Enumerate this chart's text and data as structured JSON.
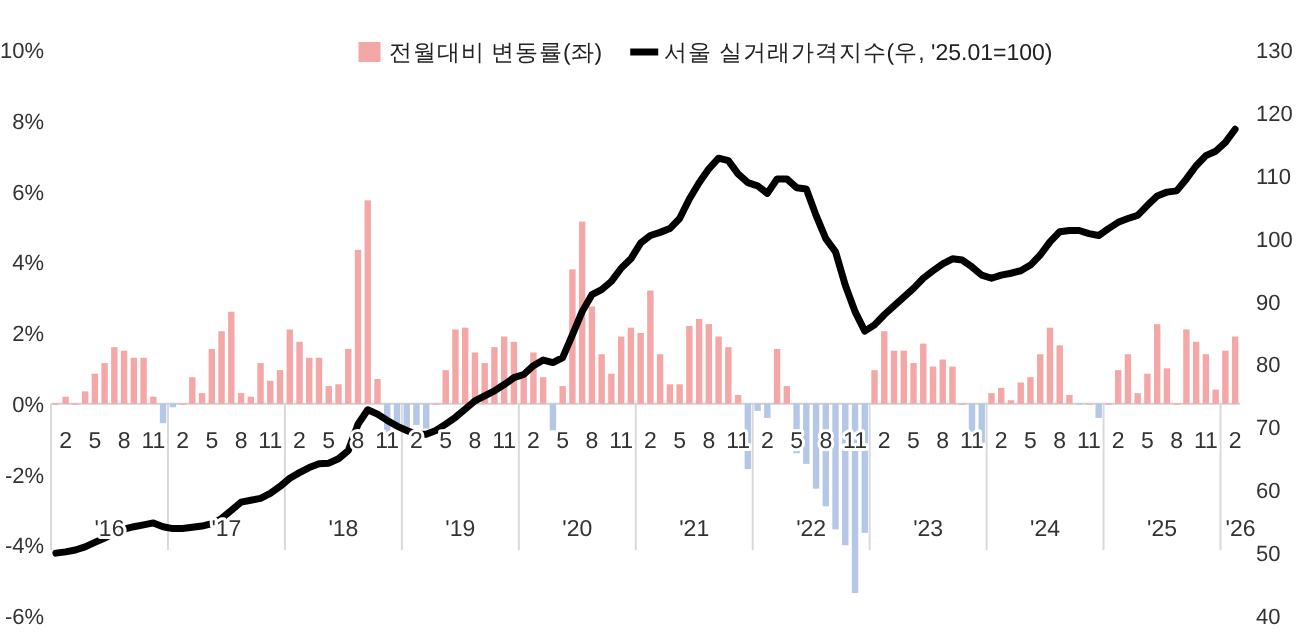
{
  "chart_data": {
    "type": "bar",
    "categories": [
      null,
      "2",
      null,
      null,
      "5",
      null,
      null,
      "8",
      null,
      null,
      "11",
      null,
      null,
      "2",
      null,
      null,
      "5",
      null,
      null,
      "8",
      null,
      null,
      "11",
      null,
      null,
      "2",
      null,
      null,
      "5",
      null,
      null,
      "8",
      null,
      null,
      "11",
      null,
      null,
      "2",
      null,
      null,
      "5",
      null,
      null,
      "8",
      null,
      null,
      "11",
      null,
      null,
      "2",
      null,
      null,
      "5",
      null,
      null,
      "8",
      null,
      null,
      "11",
      null,
      null,
      "2",
      null,
      null,
      "5",
      null,
      null,
      "8",
      null,
      null,
      "11",
      null,
      null,
      "2",
      null,
      null,
      "5",
      null,
      null,
      "8",
      null,
      null,
      "11",
      null,
      null,
      "2",
      null,
      null,
      "5",
      null,
      null,
      "8",
      null,
      null,
      "11",
      null,
      null,
      "2",
      null,
      null,
      "5",
      null,
      null,
      "8",
      null,
      null,
      "11",
      null,
      null,
      "2",
      null,
      null,
      "5",
      null,
      null,
      "8",
      null,
      null,
      "11",
      null,
      null,
      "2"
    ],
    "series": [
      {
        "name": "전월대비 변동률(좌)",
        "color": "#f4a7a7",
        "values": [
          0,
          0.2,
          0,
          0.35,
          0.85,
          1.15,
          1.6,
          1.5,
          1.3,
          1.3,
          0.2,
          -0.55,
          -0.1,
          0,
          0.75,
          0.3,
          1.55,
          2.05,
          2.6,
          0.3,
          0.2,
          1.15,
          0.65,
          0.95,
          2.1,
          1.75,
          1.3,
          1.3,
          0.5,
          0.55,
          1.55,
          4.35,
          5.75,
          0.7,
          -0.9,
          -0.7,
          -0.8,
          -0.6,
          -0.7,
          0,
          0.95,
          2.1,
          2.15,
          1.45,
          1.15,
          1.6,
          1.9,
          1.75,
          0.85,
          1.45,
          0.75,
          -0.75,
          0.5,
          3.8,
          5.15,
          2.75,
          1.4,
          0.85,
          1.9,
          2.15,
          2.0,
          3.2,
          1.4,
          0.55,
          0.55,
          2.2,
          2.4,
          2.25,
          1.9,
          1.6,
          0.25,
          -1.85,
          -0.2,
          -0.4,
          1.55,
          0.5,
          -1.4,
          -1.7,
          -2.4,
          -2.9,
          -3.55,
          -4.0,
          -5.35,
          -3.65,
          0.95,
          2.05,
          1.5,
          1.5,
          1.15,
          1.7,
          1.05,
          1.25,
          1.05,
          0,
          -0.9,
          -1.1,
          0.3,
          0.45,
          0.1,
          0.6,
          0.75,
          1.4,
          2.15,
          1.65,
          0.25,
          0,
          0,
          -0.4,
          0,
          0.95,
          1.4,
          0.3,
          0.85,
          2.25,
          1.0,
          0,
          2.1,
          1.75,
          1.4,
          0.4,
          1.5,
          1.9
        ],
        "colors": [
          "#f4a7a7",
          "#f4a7a7",
          "#f4a7a7",
          "#f4a7a7",
          "#f4a7a7",
          "#f4a7a7",
          "#f4a7a7",
          "#f4a7a7",
          "#f4a7a7",
          "#f4a7a7",
          "#f4a7a7",
          "#b4c7e7",
          "#b4c7e7",
          "#f4a7a7",
          "#f4a7a7",
          "#f4a7a7",
          "#f4a7a7",
          "#f4a7a7",
          "#f4a7a7",
          "#f4a7a7",
          "#f4a7a7",
          "#f4a7a7",
          "#f4a7a7",
          "#f4a7a7",
          "#f4a7a7",
          "#f4a7a7",
          "#f4a7a7",
          "#f4a7a7",
          "#f4a7a7",
          "#f4a7a7",
          "#f4a7a7",
          "#f4a7a7",
          "#f4a7a7",
          "#f4a7a7",
          "#b4c7e7",
          "#b4c7e7",
          "#b4c7e7",
          "#b4c7e7",
          "#b4c7e7",
          "#f4a7a7",
          "#f4a7a7",
          "#f4a7a7",
          "#f4a7a7",
          "#f4a7a7",
          "#f4a7a7",
          "#f4a7a7",
          "#f4a7a7",
          "#f4a7a7",
          "#f4a7a7",
          "#f4a7a7",
          "#f4a7a7",
          "#b4c7e7",
          "#f4a7a7",
          "#f4a7a7",
          "#f4a7a7",
          "#f4a7a7",
          "#f4a7a7",
          "#f4a7a7",
          "#f4a7a7",
          "#f4a7a7",
          "#f4a7a7",
          "#f4a7a7",
          "#f4a7a7",
          "#f4a7a7",
          "#f4a7a7",
          "#f4a7a7",
          "#f4a7a7",
          "#f4a7a7",
          "#f4a7a7",
          "#f4a7a7",
          "#f4a7a7",
          "#b4c7e7",
          "#b4c7e7",
          "#b4c7e7",
          "#f4a7a7",
          "#f4a7a7",
          "#b4c7e7",
          "#b4c7e7",
          "#b4c7e7",
          "#b4c7e7",
          "#b4c7e7",
          "#b4c7e7",
          "#b4c7e7",
          "#b4c7e7",
          "#f4a7a7",
          "#f4a7a7",
          "#f4a7a7",
          "#f4a7a7",
          "#f4a7a7",
          "#f4a7a7",
          "#f4a7a7",
          "#f4a7a7",
          "#f4a7a7",
          "#f4a7a7",
          "#b4c7e7",
          "#b4c7e7",
          "#f4a7a7",
          "#f4a7a7",
          "#f4a7a7",
          "#f4a7a7",
          "#f4a7a7",
          "#f4a7a7",
          "#f4a7a7",
          "#f4a7a7",
          "#f4a7a7",
          "#b4c7e7",
          "#f4a7a7",
          "#b4c7e7",
          "#f4a7a7",
          "#f4a7a7",
          "#f4a7a7",
          "#f4a7a7",
          "#f4a7a7",
          "#f4a7a7",
          "#f4a7a7",
          "#f4a7a7",
          "#f4a7a7",
          "#f4a7a7",
          "#f4a7a7",
          "#f4a7a7",
          "#f4a7a7",
          "#f4a7a7"
        ]
      },
      {
        "name": "서울 실거래가격지수(우, '25.01=100)",
        "type": "line",
        "axis": "y2",
        "color": "#000000",
        "values": [
          50.0,
          50.2,
          50.5,
          51.0,
          51.7,
          52.4,
          53.2,
          53.8,
          54.2,
          54.5,
          54.8,
          54.2,
          53.9,
          53.9,
          54.1,
          54.3,
          54.7,
          55.5,
          56.8,
          58.1,
          58.4,
          58.7,
          59.5,
          60.6,
          61.9,
          62.8,
          63.6,
          64.2,
          64.3,
          65.0,
          66.3,
          70.5,
          72.8,
          72.1,
          71.1,
          70.2,
          69.5,
          68.9,
          68.9,
          69.5,
          70.5,
          71.6,
          72.9,
          74.2,
          75.0,
          75.8,
          76.8,
          77.9,
          78.4,
          79.8,
          80.7,
          80.3,
          81.1,
          84.7,
          88.4,
          91.1,
          91.9,
          93.2,
          95.3,
          96.8,
          99.3,
          100.5,
          101.0,
          101.6,
          103.2,
          106.3,
          108.9,
          111.1,
          112.8,
          112.4,
          110.3,
          108.9,
          108.4,
          107.2,
          109.5,
          109.5,
          108.1,
          107.9,
          103.7,
          100.0,
          97.9,
          92.6,
          88.4,
          85.3,
          86.3,
          87.9,
          89.3,
          90.7,
          92.1,
          93.7,
          94.9,
          96.0,
          96.8,
          96.6,
          95.5,
          94.2,
          93.7,
          94.2,
          94.5,
          94.9,
          95.8,
          97.4,
          99.5,
          101.1,
          101.3,
          101.3,
          100.8,
          100.5,
          101.6,
          102.6,
          103.2,
          103.7,
          105.3,
          106.8,
          107.4,
          107.6,
          109.5,
          111.6,
          113.2,
          113.9,
          115.3,
          117.4
        ]
      }
    ],
    "ylim": [
      -6,
      10
    ],
    "yticks": [
      {
        "value": 10,
        "label": "10%"
      },
      {
        "value": 8,
        "label": "8%"
      },
      {
        "value": 6,
        "label": "6%"
      },
      {
        "value": 4,
        "label": "4%"
      },
      {
        "value": 2,
        "label": "2%"
      },
      {
        "value": 0,
        "label": "0%"
      },
      {
        "value": -2,
        "label": "-2%"
      },
      {
        "value": -4,
        "label": "-4%"
      },
      {
        "value": -6,
        "label": "-6%"
      }
    ],
    "y2lim": [
      40,
      130
    ],
    "y2ticks": [
      40,
      50,
      60,
      70,
      80,
      90,
      100,
      110,
      120,
      130
    ],
    "annotations": [
      "'16",
      "'17",
      "'18",
      "'19",
      "'20",
      "'21",
      "'22",
      "'23",
      "'24",
      "'25",
      {
        "text": "'26"
      }
    ],
    "legend": "top",
    "grid": false
  }
}
